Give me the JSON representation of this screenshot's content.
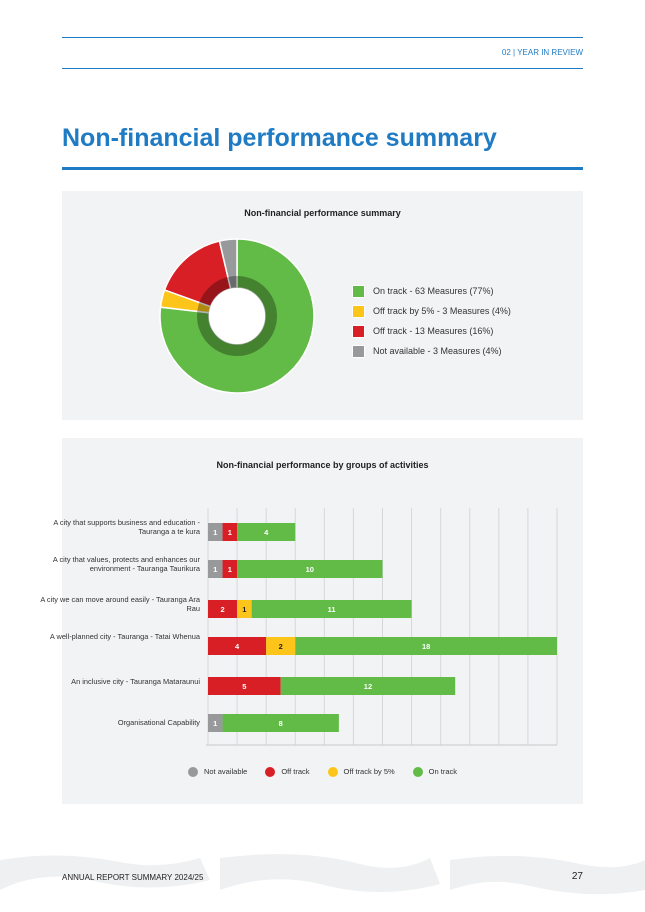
{
  "header": {
    "section": "02 | YEAR IN REVIEW"
  },
  "page_title": "Non-financial performance summary",
  "colors": {
    "on_track": "#62bb46",
    "off_track_5": "#fdc519",
    "off_track": "#d81f26",
    "not_available": "#98999b",
    "accent": "#1e7bc4"
  },
  "chart_data": [
    {
      "type": "pie",
      "title": "Non-financial performance summary",
      "slices": [
        {
          "name": "On track",
          "value": 63,
          "percent": 77,
          "legend": "On track - 63 Measures (77%)",
          "color": "#62bb46"
        },
        {
          "name": "Off track by 5%",
          "value": 3,
          "percent": 4,
          "legend": "Off track by 5% - 3 Measures (4%)",
          "color": "#fdc519"
        },
        {
          "name": "Off track",
          "value": 13,
          "percent": 16,
          "legend": "Off track - 13 Measures (16%)",
          "color": "#d81f26"
        },
        {
          "name": "Not available",
          "value": 3,
          "percent": 4,
          "legend": "Not available - 3 Measures (4%)",
          "color": "#98999b"
        }
      ]
    },
    {
      "type": "bar",
      "stacked": true,
      "orientation": "horizontal",
      "title": "Non-financial performance by groups of activities",
      "categories": [
        "A city that supports business and education - Tauranga a te kura",
        "A city that values, protects and enhances our environment - Tauranga Taurikura",
        "A city we can move around easily - Tauranga Ara Rau",
        "A well-planned city - Tauranga - Tatai Whenua",
        "An inclusive city - Tauranga Mataraunui",
        "Organisational Capability"
      ],
      "series": [
        {
          "name": "Not available",
          "color": "#98999b",
          "values": [
            1,
            1,
            0,
            0,
            0,
            1
          ]
        },
        {
          "name": "Off track",
          "color": "#d81f26",
          "values": [
            1,
            1,
            2,
            4,
            5,
            0
          ]
        },
        {
          "name": "Off track by 5%",
          "color": "#fdc519",
          "values": [
            0,
            0,
            1,
            2,
            0,
            0
          ]
        },
        {
          "name": "On track",
          "color": "#62bb46",
          "values": [
            4,
            10,
            11,
            18,
            12,
            8
          ]
        }
      ],
      "xlim": [
        0,
        24
      ],
      "grid_step": 2,
      "legend": "bottom"
    }
  ],
  "footer": {
    "left": "ANNUAL REPORT SUMMARY 2024/25",
    "page": "27"
  }
}
